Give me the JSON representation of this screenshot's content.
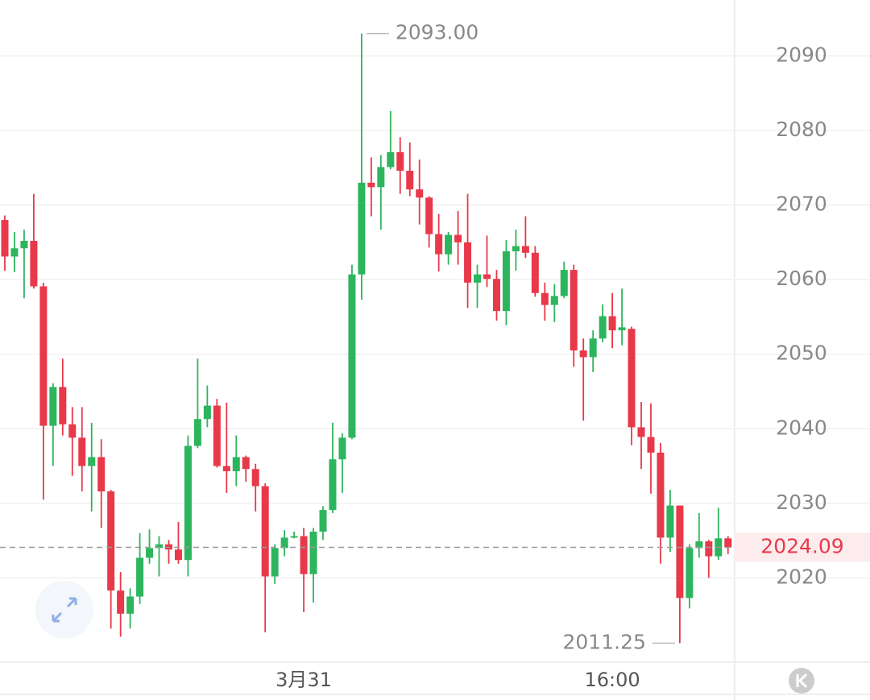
{
  "chart_data": {
    "type": "candlestick",
    "categories": [
      null,
      null,
      null,
      null,
      null,
      null,
      null,
      null,
      null,
      null,
      null,
      null,
      null,
      null,
      null,
      null,
      null,
      null,
      null,
      null,
      null,
      null,
      null,
      null,
      null,
      null,
      null,
      null,
      null,
      null,
      null,
      "3月31",
      null,
      null,
      null,
      null,
      null,
      null,
      null,
      null,
      null,
      null,
      null,
      null,
      null,
      null,
      null,
      null,
      null,
      null,
      null,
      null,
      null,
      null,
      null,
      null,
      null,
      null,
      null,
      null,
      null,
      null,
      null,
      "16:00",
      null,
      null,
      null,
      null,
      null,
      null,
      null,
      null,
      null,
      null,
      null,
      null
    ],
    "open": [
      2068,
      2063.1,
      2064.2,
      2065.2,
      2059.1,
      2040.4,
      2045.6,
      2040.6,
      2038.8,
      2035.0,
      2036.2,
      2031.6,
      2018.3,
      2015.2,
      2017.5,
      2022.7,
      2024.0,
      2024.5,
      2023.8,
      2022.4,
      2037.7,
      2041.3,
      2043.1,
      2035.0,
      2034.3,
      2036.2,
      2034.6,
      2032.3,
      2020.2,
      2024.0,
      2025.4,
      2025.6,
      2020.5,
      2026.2,
      2029.1,
      2035.9,
      2038.8,
      2060.7,
      2073.0,
      2072.4,
      2075.1,
      2077.1,
      2074.6,
      2072.1,
      2071.0,
      2066.1,
      2063.4,
      2066.0,
      2065.0,
      2059.6,
      2060.7,
      2060.1,
      2055.8,
      2063.8,
      2064.5,
      2063.6,
      2058.2,
      2056.6,
      2057.8,
      2061.3,
      2050.5,
      2049.6,
      2052.1,
      2055.1,
      2053.2,
      2053.4,
      2040.2,
      2038.9,
      2036.8,
      2025.4,
      2029.7,
      2017.3,
      2024.0,
      2024.9,
      2022.9,
      2025.3
    ],
    "high": [
      2068.6,
      2066.4,
      2066.7,
      2071.5,
      2059.6,
      2046.1,
      2049.4,
      2042.9,
      2042.9,
      2040.8,
      2038.6,
      2031.8,
      2020.8,
      2018.6,
      2026.0,
      2026.5,
      2025.6,
      2025.1,
      2027.5,
      2039.1,
      2049.4,
      2045.8,
      2044.0,
      2043.5,
      2039.1,
      2036.4,
      2035.3,
      2032.7,
      2024.5,
      2026.4,
      2026.2,
      2026.7,
      2026.7,
      2029.6,
      2040.8,
      2039.4,
      2062.0,
      2093.0,
      2076.4,
      2076.7,
      2082.6,
      2079.1,
      2078.4,
      2076.1,
      2071.2,
      2068.8,
      2066.4,
      2069.2,
      2071.5,
      2062.0,
      2065.9,
      2061.3,
      2065.3,
      2066.7,
      2068.5,
      2064.5,
      2059.6,
      2059.4,
      2062.4,
      2062.0,
      2052.1,
      2053.2,
      2056.7,
      2058.2,
      2058.8,
      2053.7,
      2043.6,
      2043.4,
      2038.1,
      2031.8,
      2029.7,
      2024.5,
      2028.7,
      2025.1,
      2029.4,
      2025.6
    ],
    "low": [
      2061.2,
      2061.0,
      2057.5,
      2058.8,
      2030.5,
      2035.0,
      2039.1,
      2033.7,
      2031.6,
      2028.9,
      2026.7,
      2013.2,
      2012.1,
      2013.2,
      2016.5,
      2021.9,
      2020.2,
      2021.9,
      2021.9,
      2020.2,
      2037.4,
      2040.2,
      2034.8,
      2031.4,
      2032.3,
      2032.9,
      2028.9,
      2012.7,
      2019.2,
      2022.9,
      2025.3,
      2015.4,
      2016.7,
      2025.1,
      2028.7,
      2031.4,
      2038.6,
      2057.3,
      2068.5,
      2066.7,
      2074.8,
      2071.5,
      2071.2,
      2067.4,
      2064.3,
      2061.1,
      2062.0,
      2062.0,
      2056.2,
      2056.2,
      2059.0,
      2054.5,
      2053.9,
      2061.2,
      2062.9,
      2057.7,
      2054.5,
      2054.3,
      2057.5,
      2048.3,
      2041.1,
      2047.6,
      2051.6,
      2050.8,
      2051.2,
      2037.8,
      2034.6,
      2031.3,
      2021.9,
      2023.5,
      2011.25,
      2015.9,
      2022.7,
      2020.0,
      2022.4,
      2023.2
    ],
    "close": [
      2063.1,
      2064.2,
      2065.2,
      2059.1,
      2040.4,
      2045.6,
      2040.6,
      2038.8,
      2035.0,
      2036.2,
      2031.6,
      2018.3,
      2015.2,
      2017.5,
      2022.7,
      2024.0,
      2024.5,
      2023.8,
      2022.4,
      2037.7,
      2041.3,
      2043.1,
      2035.0,
      2034.3,
      2036.2,
      2034.6,
      2032.3,
      2020.2,
      2024.0,
      2025.4,
      2025.6,
      2020.5,
      2026.2,
      2029.1,
      2035.9,
      2038.8,
      2060.7,
      2073.0,
      2072.4,
      2075.1,
      2077.1,
      2074.6,
      2072.1,
      2071.0,
      2066.1,
      2063.4,
      2066.0,
      2065.0,
      2059.6,
      2060.7,
      2060.1,
      2055.8,
      2063.8,
      2064.5,
      2063.6,
      2058.2,
      2056.6,
      2057.8,
      2061.3,
      2050.5,
      2049.6,
      2052.1,
      2055.1,
      2053.2,
      2053.6,
      2040.2,
      2038.9,
      2036.8,
      2025.4,
      2029.7,
      2017.3,
      2024.0,
      2024.9,
      2022.9,
      2025.3,
      2024.09
    ],
    "up_color": "#2db55d",
    "down_color": "#e8394a",
    "high_label": "2093.00",
    "low_label": "2011.25",
    "last_label": "2024.09",
    "ylim": [
      2008.7,
      2097.5
    ],
    "yticks": [
      2020,
      2030,
      2040,
      2050,
      2060,
      2070,
      2080,
      2090
    ],
    "grid": true
  }
}
